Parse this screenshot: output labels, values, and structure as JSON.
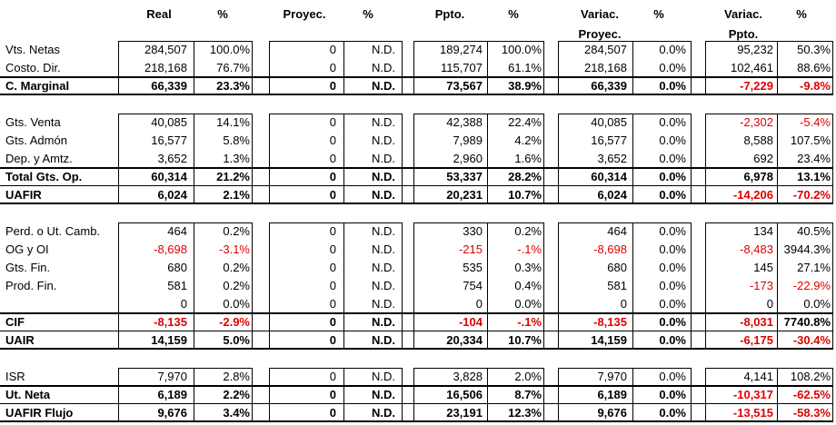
{
  "headers": {
    "real": "Real",
    "real_pct": "%",
    "proy": "Proyec.",
    "proy_pct": "%",
    "ppto": "Ppto.",
    "ppto_pct": "%",
    "var_proy_1": "Variac.",
    "var_proy_2": "Proyec.",
    "var_proy_pct": "%",
    "var_ppto_1": "Variac.",
    "var_ppto_2": "Ppto.",
    "var_ppto_pct": "%"
  },
  "colors": {
    "negative": "#e00000",
    "text": "#000000",
    "border": "#000000"
  },
  "rows": [
    {
      "label": "Vts. Netas",
      "bold": false,
      "v": [
        "284,507",
        "100.0%",
        "0",
        "N.D.",
        "189,274",
        "100.0%",
        "284,507",
        "0.0%",
        "95,232",
        "50.3%"
      ]
    },
    {
      "label": "Costo. Dir.",
      "bold": false,
      "v": [
        "218,168",
        "76.7%",
        "0",
        "N.D.",
        "115,707",
        "61.1%",
        "218,168",
        "0.0%",
        "102,461",
        "88.6%"
      ]
    },
    {
      "label": "C. Marginal",
      "bold": true,
      "v": [
        "66,339",
        "23.3%",
        "0",
        "N.D.",
        "73,567",
        "38.9%",
        "66,339",
        "0.0%",
        "-7,229",
        "-9.8%"
      ]
    },
    {
      "label": "Gts. Venta",
      "bold": false,
      "v": [
        "40,085",
        "14.1%",
        "0",
        "N.D.",
        "42,388",
        "22.4%",
        "40,085",
        "0.0%",
        "-2,302",
        "-5.4%"
      ]
    },
    {
      "label": "Gts. Admón",
      "bold": false,
      "v": [
        "16,577",
        "5.8%",
        "0",
        "N.D.",
        "7,989",
        "4.2%",
        "16,577",
        "0.0%",
        "8,588",
        "107.5%"
      ]
    },
    {
      "label": "Dep. y Amtz.",
      "bold": false,
      "v": [
        "3,652",
        "1.3%",
        "0",
        "N.D.",
        "2,960",
        "1.6%",
        "3,652",
        "0.0%",
        "692",
        "23.4%"
      ]
    },
    {
      "label": "Total Gts. Op.",
      "bold": true,
      "v": [
        "60,314",
        "21.2%",
        "0",
        "N.D.",
        "53,337",
        "28.2%",
        "60,314",
        "0.0%",
        "6,978",
        "13.1%"
      ]
    },
    {
      "label": "UAFIR",
      "bold": true,
      "v": [
        "6,024",
        "2.1%",
        "0",
        "N.D.",
        "20,231",
        "10.7%",
        "6,024",
        "0.0%",
        "-14,206",
        "-70.2%"
      ]
    },
    {
      "label": "Perd. o Ut. Camb.",
      "bold": false,
      "v": [
        "464",
        "0.2%",
        "0",
        "N.D.",
        "330",
        "0.2%",
        "464",
        "0.0%",
        "134",
        "40.5%"
      ]
    },
    {
      "label": "OG y OI",
      "bold": false,
      "v": [
        "-8,698",
        "-3.1%",
        "0",
        "N.D.",
        "-215",
        "-.1%",
        "-8,698",
        "0.0%",
        "-8,483",
        "3944.3%"
      ]
    },
    {
      "label": "Gts. Fin.",
      "bold": false,
      "v": [
        "680",
        "0.2%",
        "0",
        "N.D.",
        "535",
        "0.3%",
        "680",
        "0.0%",
        "145",
        "27.1%"
      ]
    },
    {
      "label": "Prod. Fin.",
      "bold": false,
      "v": [
        "581",
        "0.2%",
        "0",
        "N.D.",
        "754",
        "0.4%",
        "581",
        "0.0%",
        "-173",
        "-22.9%"
      ]
    },
    {
      "label": "",
      "bold": false,
      "v": [
        "0",
        "0.0%",
        "0",
        "N.D.",
        "0",
        "0.0%",
        "0",
        "0.0%",
        "0",
        "0.0%"
      ]
    },
    {
      "label": "CIF",
      "bold": true,
      "v": [
        "-8,135",
        "-2.9%",
        "0",
        "N.D.",
        "-104",
        "-.1%",
        "-8,135",
        "0.0%",
        "-8,031",
        "7740.8%"
      ]
    },
    {
      "label": "UAIR",
      "bold": true,
      "v": [
        "14,159",
        "5.0%",
        "0",
        "N.D.",
        "20,334",
        "10.7%",
        "14,159",
        "0.0%",
        "-6,175",
        "-30.4%"
      ]
    },
    {
      "label": "ISR",
      "bold": false,
      "v": [
        "7,970",
        "2.8%",
        "0",
        "N.D.",
        "3,828",
        "2.0%",
        "7,970",
        "0.0%",
        "4,141",
        "108.2%"
      ]
    },
    {
      "label": "Ut. Neta",
      "bold": true,
      "v": [
        "6,189",
        "2.2%",
        "0",
        "N.D.",
        "16,506",
        "8.7%",
        "6,189",
        "0.0%",
        "-10,317",
        "-62.5%"
      ]
    },
    {
      "label": "UAFIR Flujo",
      "bold": true,
      "v": [
        "9,676",
        "3.4%",
        "0",
        "N.D.",
        "23,191",
        "12.3%",
        "9,676",
        "0.0%",
        "-13,515",
        "-58.3%"
      ]
    }
  ]
}
